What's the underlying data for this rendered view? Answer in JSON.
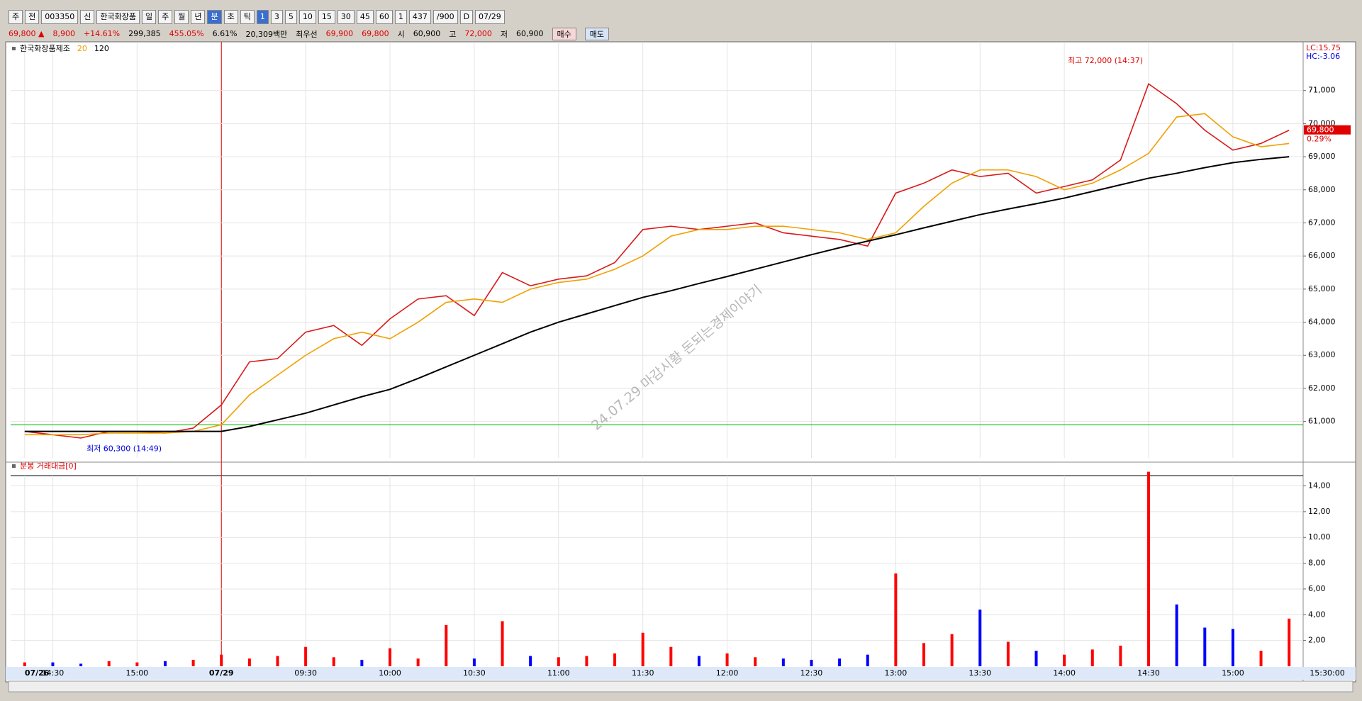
{
  "toolbar": {
    "items": [
      "주",
      "전",
      "003350",
      "신",
      "한국화장품",
      "일",
      "주",
      "월",
      "년",
      "분",
      "초",
      "틱",
      "1",
      "3",
      "5",
      "10",
      "15",
      "30",
      "45",
      "60",
      "1",
      "437",
      "/900",
      "D",
      "07/29"
    ],
    "active_items": [
      9,
      12
    ]
  },
  "info_bar": {
    "items": [
      {
        "text": "69,800 ▲",
        "color": "#e00000"
      },
      {
        "text": "8,900",
        "color": "#e00000"
      },
      {
        "text": "+14.61%",
        "color": "#e00000"
      },
      {
        "text": "299,385",
        "color": "#000000"
      },
      {
        "text": "455.05%",
        "color": "#e00000"
      },
      {
        "text": "6.61%",
        "color": "#000000"
      },
      {
        "text": "20,309백만",
        "color": "#000000"
      },
      {
        "text": "최우선",
        "color": "#000000"
      },
      {
        "text": "69,900",
        "color": "#e00000"
      },
      {
        "text": "69,800",
        "color": "#e00000"
      },
      {
        "text": "시",
        "color": "#000000"
      },
      {
        "text": "60,900",
        "color": "#000000"
      },
      {
        "text": "고",
        "color": "#000000"
      },
      {
        "text": "72,000",
        "color": "#e00000"
      },
      {
        "text": "저",
        "color": "#000000"
      },
      {
        "text": "60,900",
        "color": "#000000"
      }
    ],
    "buttons": [
      "매수",
      "매도"
    ]
  },
  "chart_data": [
    {
      "type": "line",
      "series": [
        {
          "name": "한국화장품제조",
          "color": "#d81a1a",
          "values": [
            60700,
            60600,
            60500,
            60700,
            60700,
            60650,
            60800,
            61500,
            62800,
            62900,
            63700,
            63900,
            63300,
            64100,
            64700,
            64800,
            64200,
            65500,
            65100,
            65300,
            65400,
            65800,
            66800,
            66900,
            66800,
            66900,
            67000,
            66700,
            66600,
            66500,
            66300,
            67900,
            68200,
            68600,
            68400,
            68500,
            67900,
            68100,
            68300,
            68900,
            71200,
            70600,
            69800,
            69200,
            69400,
            69800
          ]
        },
        {
          "name": "20",
          "color": "#f0a000",
          "values": [
            60600,
            60600,
            60600,
            60650,
            60650,
            60650,
            60700,
            60900,
            61800,
            62400,
            63000,
            63500,
            63700,
            63500,
            64000,
            64600,
            64700,
            64600,
            65000,
            65200,
            65300,
            65600,
            66000,
            66600,
            66800,
            66800,
            66900,
            66900,
            66800,
            66700,
            66500,
            66700,
            67500,
            68200,
            68600,
            68600,
            68400,
            68000,
            68200,
            68600,
            69100,
            70200,
            70300,
            69600,
            69300,
            69400
          ]
        },
        {
          "name": "120",
          "color": "#000000",
          "values": [
            60700,
            60700,
            60700,
            60700,
            60700,
            60700,
            60700,
            60700,
            60850,
            61050,
            61250,
            61500,
            61750,
            61970,
            62300,
            62650,
            63000,
            63350,
            63700,
            64000,
            64250,
            64500,
            64750,
            64950,
            65170,
            65380,
            65600,
            65820,
            66040,
            66250,
            66450,
            66640,
            66850,
            67050,
            67250,
            67420,
            67580,
            67750,
            67950,
            68150,
            68350,
            68500,
            68670,
            68820,
            68920,
            69000
          ]
        }
      ],
      "ylim": [
        59900,
        72000
      ],
      "yticks": [
        {
          "value": 61000,
          "label": "61,000"
        },
        {
          "value": 62000,
          "label": "62,000"
        },
        {
          "value": 63000,
          "label": "63,000"
        },
        {
          "value": 64000,
          "label": "64,000"
        },
        {
          "value": 65000,
          "label": "65,000"
        },
        {
          "value": 66000,
          "label": "66,000"
        },
        {
          "value": 67000,
          "label": "67,000"
        },
        {
          "value": 68000,
          "label": "68,000"
        },
        {
          "value": 69000,
          "label": "69,000"
        },
        {
          "value": 70000,
          "label": "70,000"
        },
        {
          "value": 71000,
          "label": "71,000"
        }
      ],
      "grid": true,
      "reference_line": {
        "value": 60900,
        "color": "#00c000"
      },
      "annotations": [
        {
          "label": "최고 72,000 (14:37)",
          "value": 72000,
          "color": "#e00000"
        },
        {
          "label": "최저 60,300 (14:49)",
          "value": 60300,
          "color": "#0000e0"
        }
      ],
      "side_labels": [
        {
          "text": "LC:15.75",
          "color": "#e00000"
        },
        {
          "text": "HC:-3.06",
          "color": "#0000e0"
        }
      ],
      "last_price_tag": {
        "label": "69,800",
        "value": 69800,
        "change": "0.29%"
      },
      "watermark": "24.07.29 마감시황   돈되는경제이야기"
    },
    {
      "type": "bar",
      "title": "분봉 거래대금[0]",
      "categories": [
        "07/26",
        "14:30",
        null,
        null,
        "15:00",
        null,
        null,
        "07/29",
        null,
        null,
        "09:30",
        null,
        null,
        "10:00",
        null,
        null,
        "10:30",
        null,
        null,
        "11:00",
        null,
        null,
        "11:30",
        null,
        null,
        "12:00",
        null,
        null,
        "12:30",
        null,
        null,
        "13:00",
        null,
        null,
        "13:30",
        null,
        null,
        "14:00",
        null,
        null,
        "14:30",
        null,
        null,
        "15:00",
        null,
        null
      ],
      "values": [
        0.3,
        0.3,
        0.2,
        0.4,
        0.3,
        0.4,
        0.5,
        0.9,
        0.6,
        0.8,
        1.5,
        0.7,
        0.5,
        1.4,
        0.6,
        3.2,
        0.6,
        3.5,
        0.8,
        0.7,
        0.8,
        1.0,
        2.6,
        1.5,
        0.8,
        1.0,
        0.7,
        0.6,
        0.5,
        0.6,
        0.9,
        7.2,
        1.8,
        2.5,
        4.4,
        1.9,
        1.2,
        0.9,
        1.3,
        1.6,
        15.1,
        4.8,
        3.0,
        2.9,
        1.2,
        3.7
      ],
      "up_color": "#ff0000",
      "down_color": "#0000ff",
      "ylim": [
        0,
        14.8
      ],
      "yticks": [
        {
          "value": 2,
          "label": "2,00"
        },
        {
          "value": 4,
          "label": "4,00"
        },
        {
          "value": 6,
          "label": "6,00"
        },
        {
          "value": 8,
          "label": "8,00"
        },
        {
          "value": 10,
          "label": "10,00"
        },
        {
          "value": 12,
          "label": "12,00"
        },
        {
          "value": 14,
          "label": "14,00"
        }
      ],
      "grid": true,
      "x_end_label": "15:30:00"
    }
  ]
}
